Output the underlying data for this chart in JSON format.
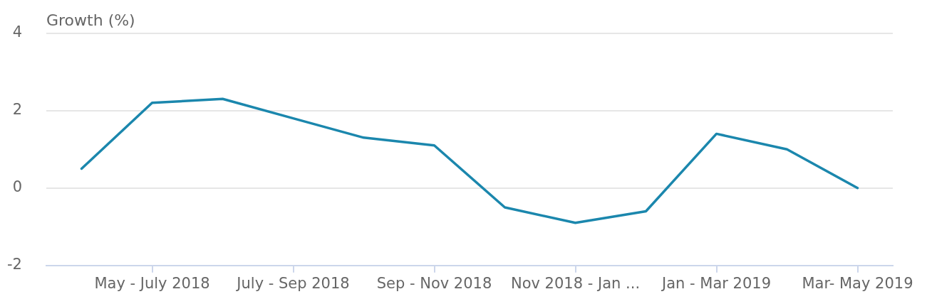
{
  "chart_data": {
    "type": "line",
    "ylabel": "Growth (%)",
    "categories": [
      null,
      "May - July 2018",
      null,
      "July - Sep 2018",
      null,
      "Sep - Nov 2018",
      null,
      "Nov 2018 - Jan ...",
      null,
      "Jan - Mar 2019",
      null,
      "Mar- May 2019"
    ],
    "series": [
      {
        "color": "#1b87ad",
        "values": [
          0.5,
          2.2,
          2.3,
          1.8,
          1.3,
          1.1,
          -0.5,
          -0.9,
          -0.6,
          1.4,
          1.0,
          0
        ]
      }
    ],
    "ylim": [
      -2,
      4
    ],
    "yticks": [
      -2,
      0,
      2,
      4
    ],
    "grid": "y",
    "legend": false,
    "marker": "none",
    "line_style": "solid"
  }
}
